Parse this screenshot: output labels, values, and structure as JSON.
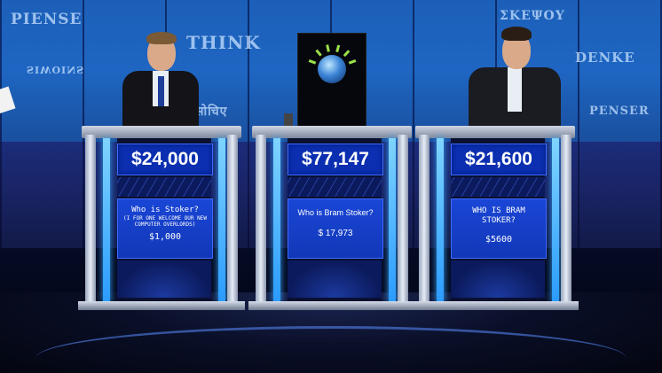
{
  "wall": {
    "words": [
      "PIENSE",
      "THINK",
      "ΣΚΕΨΟΥ",
      "DENKE",
      "PENSER",
      "SIWOINS",
      "सोचिए"
    ]
  },
  "podiums": [
    {
      "score": "$24,000",
      "response": "Who is Stoker?",
      "note": "(I FOR ONE WELCOME OUR NEW COMPUTER OVERLORDS)",
      "wager": "$1,000"
    },
    {
      "score": "$77,147",
      "response": "Who is Bram Stoker?",
      "wager": "$ 17,973"
    },
    {
      "score": "$21,600",
      "response": "WHO IS BRAM STOKER?",
      "wager": "$5600"
    }
  ],
  "colors": {
    "wall_blue": "#1e66c2",
    "screen_blue": "#1238b8",
    "podium_glow": "#35a7ff",
    "watson_rays": "#9be04a"
  }
}
